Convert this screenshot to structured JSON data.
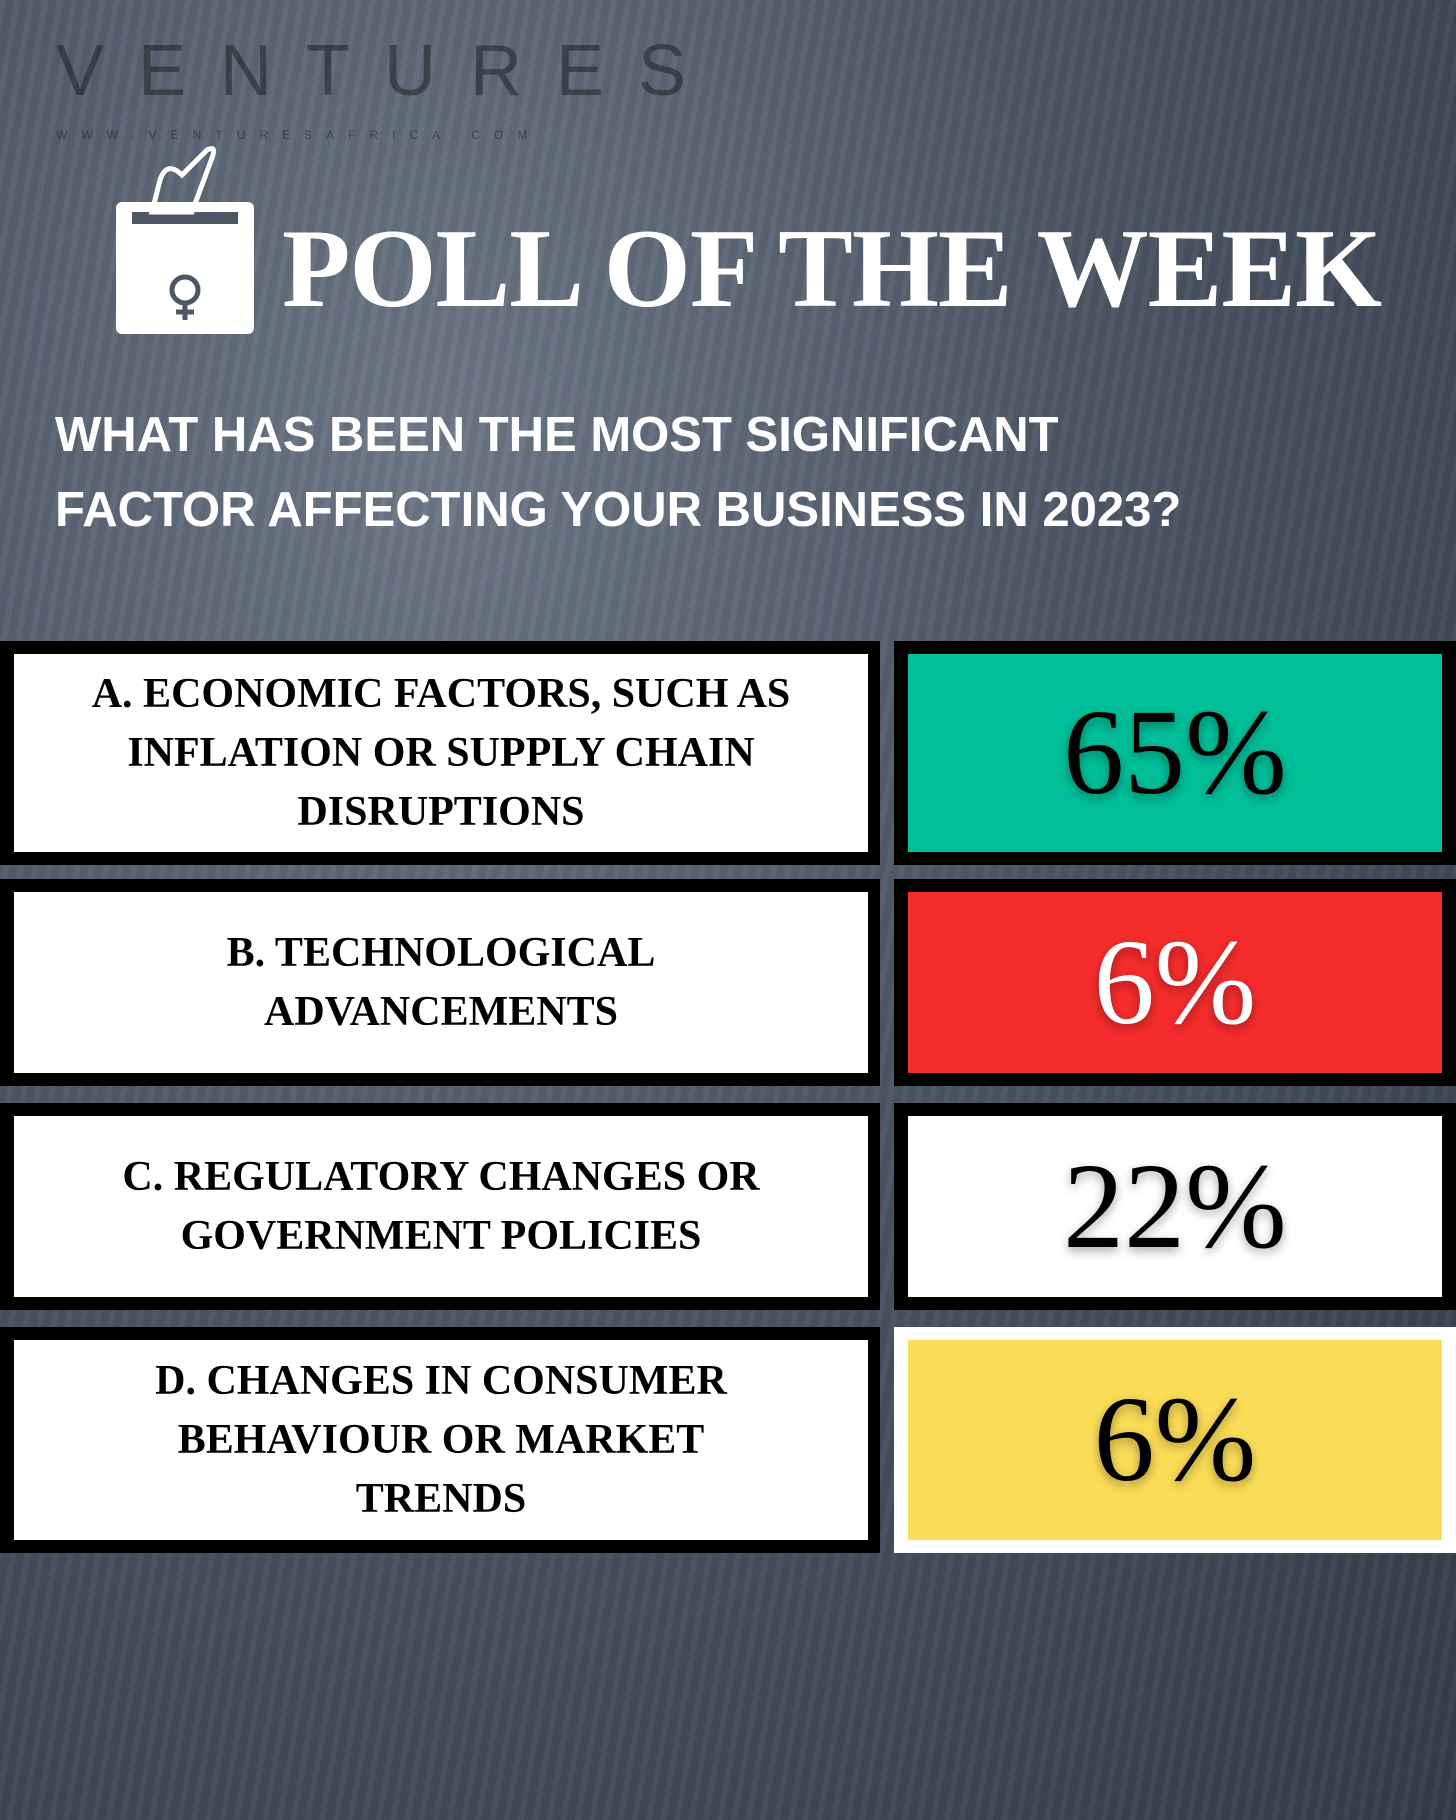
{
  "header": {
    "brand": "VENTURES",
    "website": "WWW.VENTURESAFRICA.COM",
    "title": "POLL OF THE WEEK"
  },
  "question": [
    "WHAT HAS BEEN THE MOST SIGNIFICANT",
    "FACTOR AFFECTING YOUR BUSINESS IN 2023?"
  ],
  "options": [
    {
      "label": [
        "A.  ECONOMIC FACTORS, SUCH AS",
        "INFLATION OR SUPPLY CHAIN",
        "DISRUPTIONS"
      ],
      "result": "65%",
      "color": "#00bf9a",
      "text_color": "#000000"
    },
    {
      "label": [
        "B. TECHNOLOGICAL",
        "ADVANCEMENTS"
      ],
      "result": "6%",
      "color": "#f52c2c",
      "text_color": "#ffffff"
    },
    {
      "label": [
        "C. REGULATORY CHANGES OR",
        "GOVERNMENT POLICIES"
      ],
      "result": "22%",
      "color": "#ffffff",
      "text_color": "#000000"
    },
    {
      "label": [
        "D. CHANGES IN CONSUMER",
        "BEHAVIOUR OR MARKET",
        "TRENDS"
      ],
      "result": "6%",
      "color": "#fbdc57",
      "text_color": "#000000"
    }
  ]
}
